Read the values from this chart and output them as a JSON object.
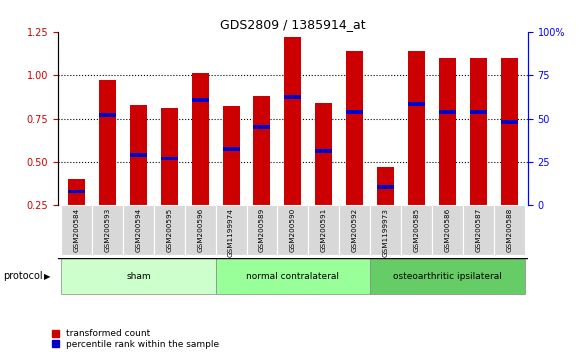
{
  "title": "GDS2809 / 1385914_at",
  "categories": [
    "GSM200584",
    "GSM200593",
    "GSM200594",
    "GSM200595",
    "GSM200596",
    "GSM1199974",
    "GSM200589",
    "GSM200590",
    "GSM200591",
    "GSM200592",
    "GSM1199973",
    "GSM200585",
    "GSM200586",
    "GSM200587",
    "GSM200588"
  ],
  "red_values": [
    0.4,
    0.975,
    0.83,
    0.81,
    1.01,
    0.82,
    0.88,
    1.22,
    0.84,
    1.14,
    0.47,
    1.14,
    1.1,
    1.1,
    1.1
  ],
  "blue_values": [
    0.33,
    0.77,
    0.54,
    0.52,
    0.855,
    0.575,
    0.7,
    0.875,
    0.565,
    0.79,
    0.355,
    0.835,
    0.79,
    0.79,
    0.73
  ],
  "groups": [
    {
      "label": "sham",
      "start": 0,
      "end": 5,
      "color": "#ccffcc"
    },
    {
      "label": "normal contralateral",
      "start": 5,
      "end": 10,
      "color": "#99ff99"
    },
    {
      "label": "osteoarthritic ipsilateral",
      "start": 10,
      "end": 15,
      "color": "#66cc66"
    }
  ],
  "ylim_left": [
    0.25,
    1.25
  ],
  "ylim_right": [
    0,
    100
  ],
  "yticks_left": [
    0.25,
    0.5,
    0.75,
    1.0,
    1.25
  ],
  "yticks_right": [
    0,
    25,
    50,
    75,
    100
  ],
  "bar_width": 0.55,
  "red_color": "#cc0000",
  "blue_color": "#0000cc",
  "protocol_label": "protocol",
  "legend_red": "transformed count",
  "legend_blue": "percentile rank within the sample"
}
